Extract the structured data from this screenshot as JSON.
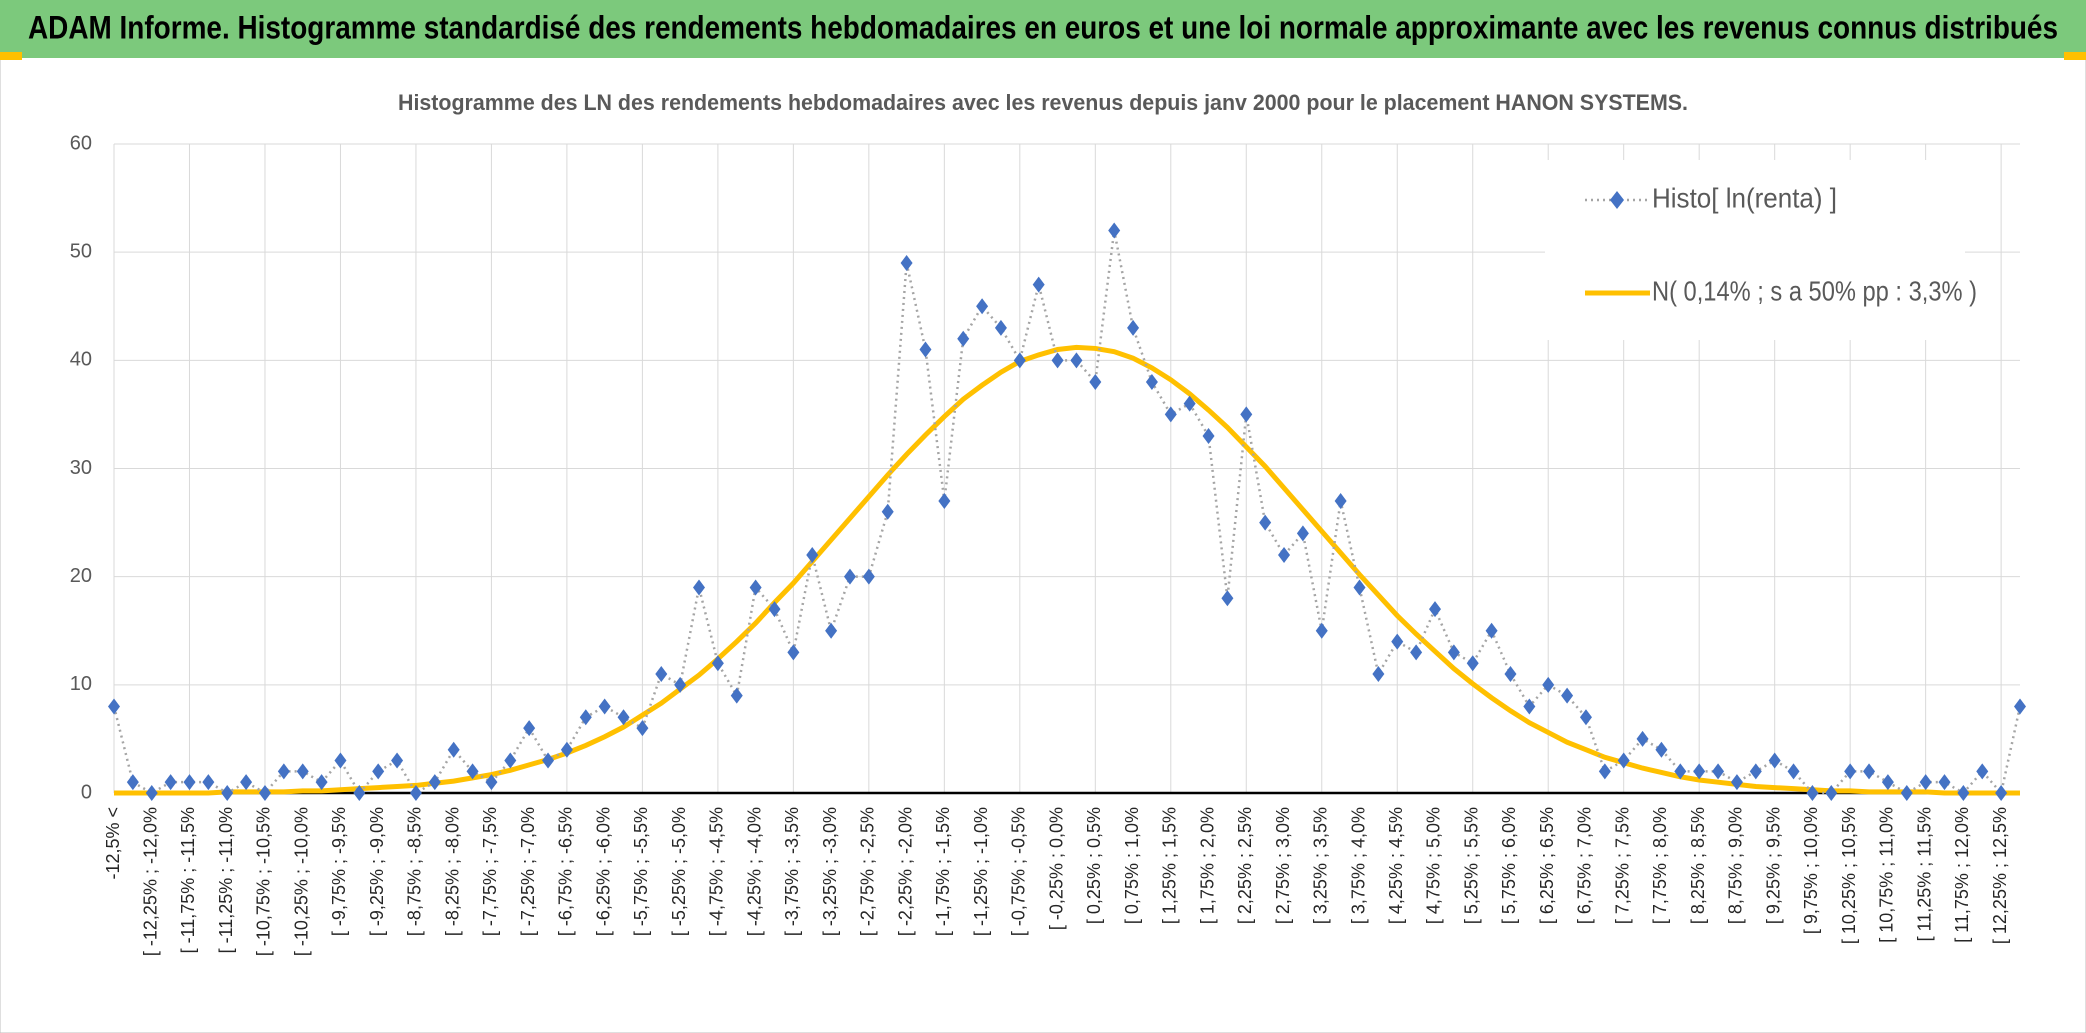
{
  "chart_data": {
    "type": "line",
    "header": "ADAM Informe. Histogramme standardisé des rendements hebdomadaires en euros et une loi normale approximante avec les revenus connus distribués",
    "title": "Histogramme des LN des rendements hebdomadaires avec les revenus depuis janv 2000 pour le placement HANON SYSTEMS.",
    "categories": [
      "-12,5% <",
      null,
      "[ -12,25% ; -12,0%",
      null,
      "[ -11,75% ; -11,5%",
      null,
      "[ -11,25% ; -11,0%",
      null,
      "[ -10,75% ; -10,5%",
      null,
      "[ -10,25% ; -10,0%",
      null,
      "[ -9,75% ; -9,5%",
      null,
      "[ -9,25% ; -9,0%",
      null,
      "[ -8,75% ; -8,5%",
      null,
      "[ -8,25% ; -8,0%",
      null,
      "[ -7,75% ; -7,5%",
      null,
      "[ -7,25% ; -7,0%",
      null,
      "[ -6,75% ; -6,5%",
      null,
      "[ -6,25% ; -6,0%",
      null,
      "[ -5,75% ; -5,5%",
      null,
      "[ -5,25% ; -5,0%",
      null,
      "[ -4,75% ; -4,5%",
      null,
      "[ -4,25% ; -4,0%",
      null,
      "[ -3,75% ; -3,5%",
      null,
      "[ -3,25% ; -3,0%",
      null,
      "[ -2,75% ; -2,5%",
      null,
      "[ -2,25% ; -2,0%",
      null,
      "[ -1,75% ; -1,5%",
      null,
      "[ -1,25% ; -1,0%",
      null,
      "[ -0,75% ; -0,5%",
      null,
      "[ -0,25% ; 0,0%",
      null,
      "[ 0,25% ; 0,5%",
      null,
      "[ 0,75% ; 1,0%",
      null,
      "[ 1,25% ; 1,5%",
      null,
      "[ 1,75% ; 2,0%",
      null,
      "[ 2,25% ; 2,5%",
      null,
      "[ 2,75% ; 3,0%",
      null,
      "[ 3,25% ; 3,5%",
      null,
      "[ 3,75% ; 4,0%",
      null,
      "[ 4,25% ; 4,5%",
      null,
      "[ 4,75% ; 5,0%",
      null,
      "[ 5,25% ; 5,5%",
      null,
      "[ 5,75% ; 6,0%",
      null,
      "[ 6,25% ; 6,5%",
      null,
      "[ 6,75% ; 7,0%",
      null,
      "[ 7,25% ; 7,5%",
      null,
      "[ 7,75% ; 8,0%",
      null,
      "[ 8,25% ; 8,5%",
      null,
      "[ 8,75% ; 9,0%",
      null,
      "[ 9,25% ; 9,5%",
      null,
      "[ 9,75% ; 10,0%",
      null,
      "[ 10,25% ; 10,5%",
      null,
      "[ 10,75% ; 11,0%",
      null,
      "[ 11,25% ; 11,5%",
      null,
      "[ 11,75% ; 12,0%",
      null,
      "[ 12,25% ; 12,5%",
      null
    ],
    "series": [
      {
        "name": "Histo[ ln(renta) ]",
        "color": "#4472c4",
        "values": [
          8,
          1,
          0,
          1,
          1,
          1,
          0,
          1,
          0,
          2,
          2,
          1,
          3,
          0,
          2,
          3,
          0,
          1,
          4,
          2,
          1,
          3,
          6,
          3,
          4,
          7,
          8,
          7,
          6,
          11,
          10,
          19,
          12,
          9,
          19,
          17,
          13,
          22,
          15,
          20,
          20,
          26,
          49,
          41,
          27,
          42,
          45,
          43,
          40,
          47,
          40,
          40,
          38,
          52,
          43,
          38,
          35,
          36,
          33,
          18,
          35,
          25,
          22,
          24,
          15,
          27,
          19,
          11,
          14,
          13,
          17,
          13,
          12,
          15,
          11,
          8,
          10,
          9,
          7,
          2,
          3,
          5,
          4,
          2,
          2,
          2,
          1,
          2,
          3,
          2,
          0,
          0,
          2,
          2,
          1,
          0,
          1,
          1,
          0,
          2,
          0,
          8
        ]
      },
      {
        "name": "N( 0,14% ; s a 50% pp : 3,3% )",
        "color": "#ffc000",
        "values": [
          0,
          0,
          0,
          0,
          0,
          0,
          0.1,
          0.1,
          0.1,
          0.1,
          0.2,
          0.2,
          0.3,
          0.4,
          0.5,
          0.6,
          0.7,
          0.9,
          1.1,
          1.4,
          1.7,
          2.1,
          2.6,
          3.1,
          3.7,
          4.4,
          5.2,
          6.1,
          7.2,
          8.3,
          9.6,
          10.9,
          12.4,
          14,
          15.7,
          17.6,
          19.4,
          21.4,
          23.4,
          25.4,
          27.4,
          29.4,
          31.3,
          33.1,
          34.8,
          36.4,
          37.7,
          38.9,
          39.9,
          40.5,
          41,
          41.2,
          41.1,
          40.8,
          40.2,
          39.3,
          38.2,
          36.9,
          35.4,
          33.8,
          32,
          30.2,
          28.2,
          26.2,
          24.2,
          22.2,
          20.2,
          18.3,
          16.4,
          14.7,
          13.1,
          11.5,
          10.1,
          8.8,
          7.6,
          6.5,
          5.6,
          4.7,
          4,
          3.3,
          2.8,
          2.3,
          1.9,
          1.5,
          1.2,
          1,
          0.8,
          0.6,
          0.5,
          0.4,
          0.3,
          0.2,
          0.2,
          0.1,
          0.1,
          0.1,
          0.1,
          0,
          0,
          0,
          0,
          0
        ]
      }
    ],
    "ylim": [
      0,
      60
    ],
    "yticks": [
      0,
      10,
      20,
      30,
      40,
      50,
      60
    ],
    "grid": true,
    "legend": "top-right"
  }
}
